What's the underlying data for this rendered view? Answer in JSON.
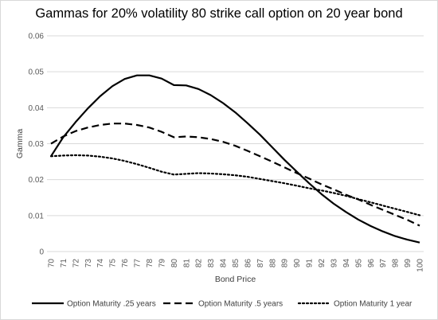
{
  "chart_data": {
    "type": "line",
    "title": "Gammas for 20% volatility 80 strike call option on 20 year bond",
    "xlabel": "Bond Price",
    "ylabel": "Gamma",
    "x": [
      70,
      71,
      72,
      73,
      74,
      75,
      76,
      77,
      78,
      79,
      80,
      81,
      82,
      83,
      84,
      85,
      86,
      87,
      88,
      89,
      90,
      91,
      92,
      93,
      94,
      95,
      96,
      97,
      98,
      99,
      100
    ],
    "y_ticks": [
      "0",
      "0.01",
      "0.02",
      "0.03",
      "0.04",
      "0.05",
      "0.06"
    ],
    "ylim": [
      0,
      0.06
    ],
    "grid": "horizontal",
    "legend_position": "bottom",
    "series": [
      {
        "name": "Option Maturity .25 years",
        "style": "solid",
        "values": [
          0.0265,
          0.0318,
          0.036,
          0.0398,
          0.0432,
          0.046,
          0.048,
          0.049,
          0.049,
          0.0481,
          0.0463,
          0.0462,
          0.0452,
          0.0435,
          0.0413,
          0.0387,
          0.0357,
          0.0325,
          0.029,
          0.0255,
          0.0222,
          0.019,
          0.016,
          0.0133,
          0.011,
          0.0089,
          0.0071,
          0.0056,
          0.0043,
          0.0033,
          0.0025
        ]
      },
      {
        "name": "Option Maturity .5 years",
        "style": "dashed",
        "values": [
          0.03,
          0.032,
          0.0335,
          0.0345,
          0.0352,
          0.0356,
          0.0356,
          0.0352,
          0.0345,
          0.0333,
          0.0318,
          0.032,
          0.0318,
          0.0313,
          0.0305,
          0.0294,
          0.028,
          0.0265,
          0.025,
          0.0234,
          0.0218,
          0.0203,
          0.0187,
          0.0173,
          0.0158,
          0.0145,
          0.013,
          0.0116,
          0.0102,
          0.0088,
          0.0072
        ]
      },
      {
        "name": "Option Maturity 1 year",
        "style": "dotted",
        "values": [
          0.0265,
          0.0267,
          0.0268,
          0.0267,
          0.0264,
          0.0259,
          0.0252,
          0.0243,
          0.0233,
          0.0222,
          0.0214,
          0.0216,
          0.0218,
          0.0217,
          0.0215,
          0.0212,
          0.0208,
          0.0202,
          0.0196,
          0.019,
          0.0183,
          0.0176,
          0.017,
          0.0163,
          0.0155,
          0.0146,
          0.0137,
          0.0128,
          0.0119,
          0.011,
          0.0101
        ]
      }
    ]
  }
}
